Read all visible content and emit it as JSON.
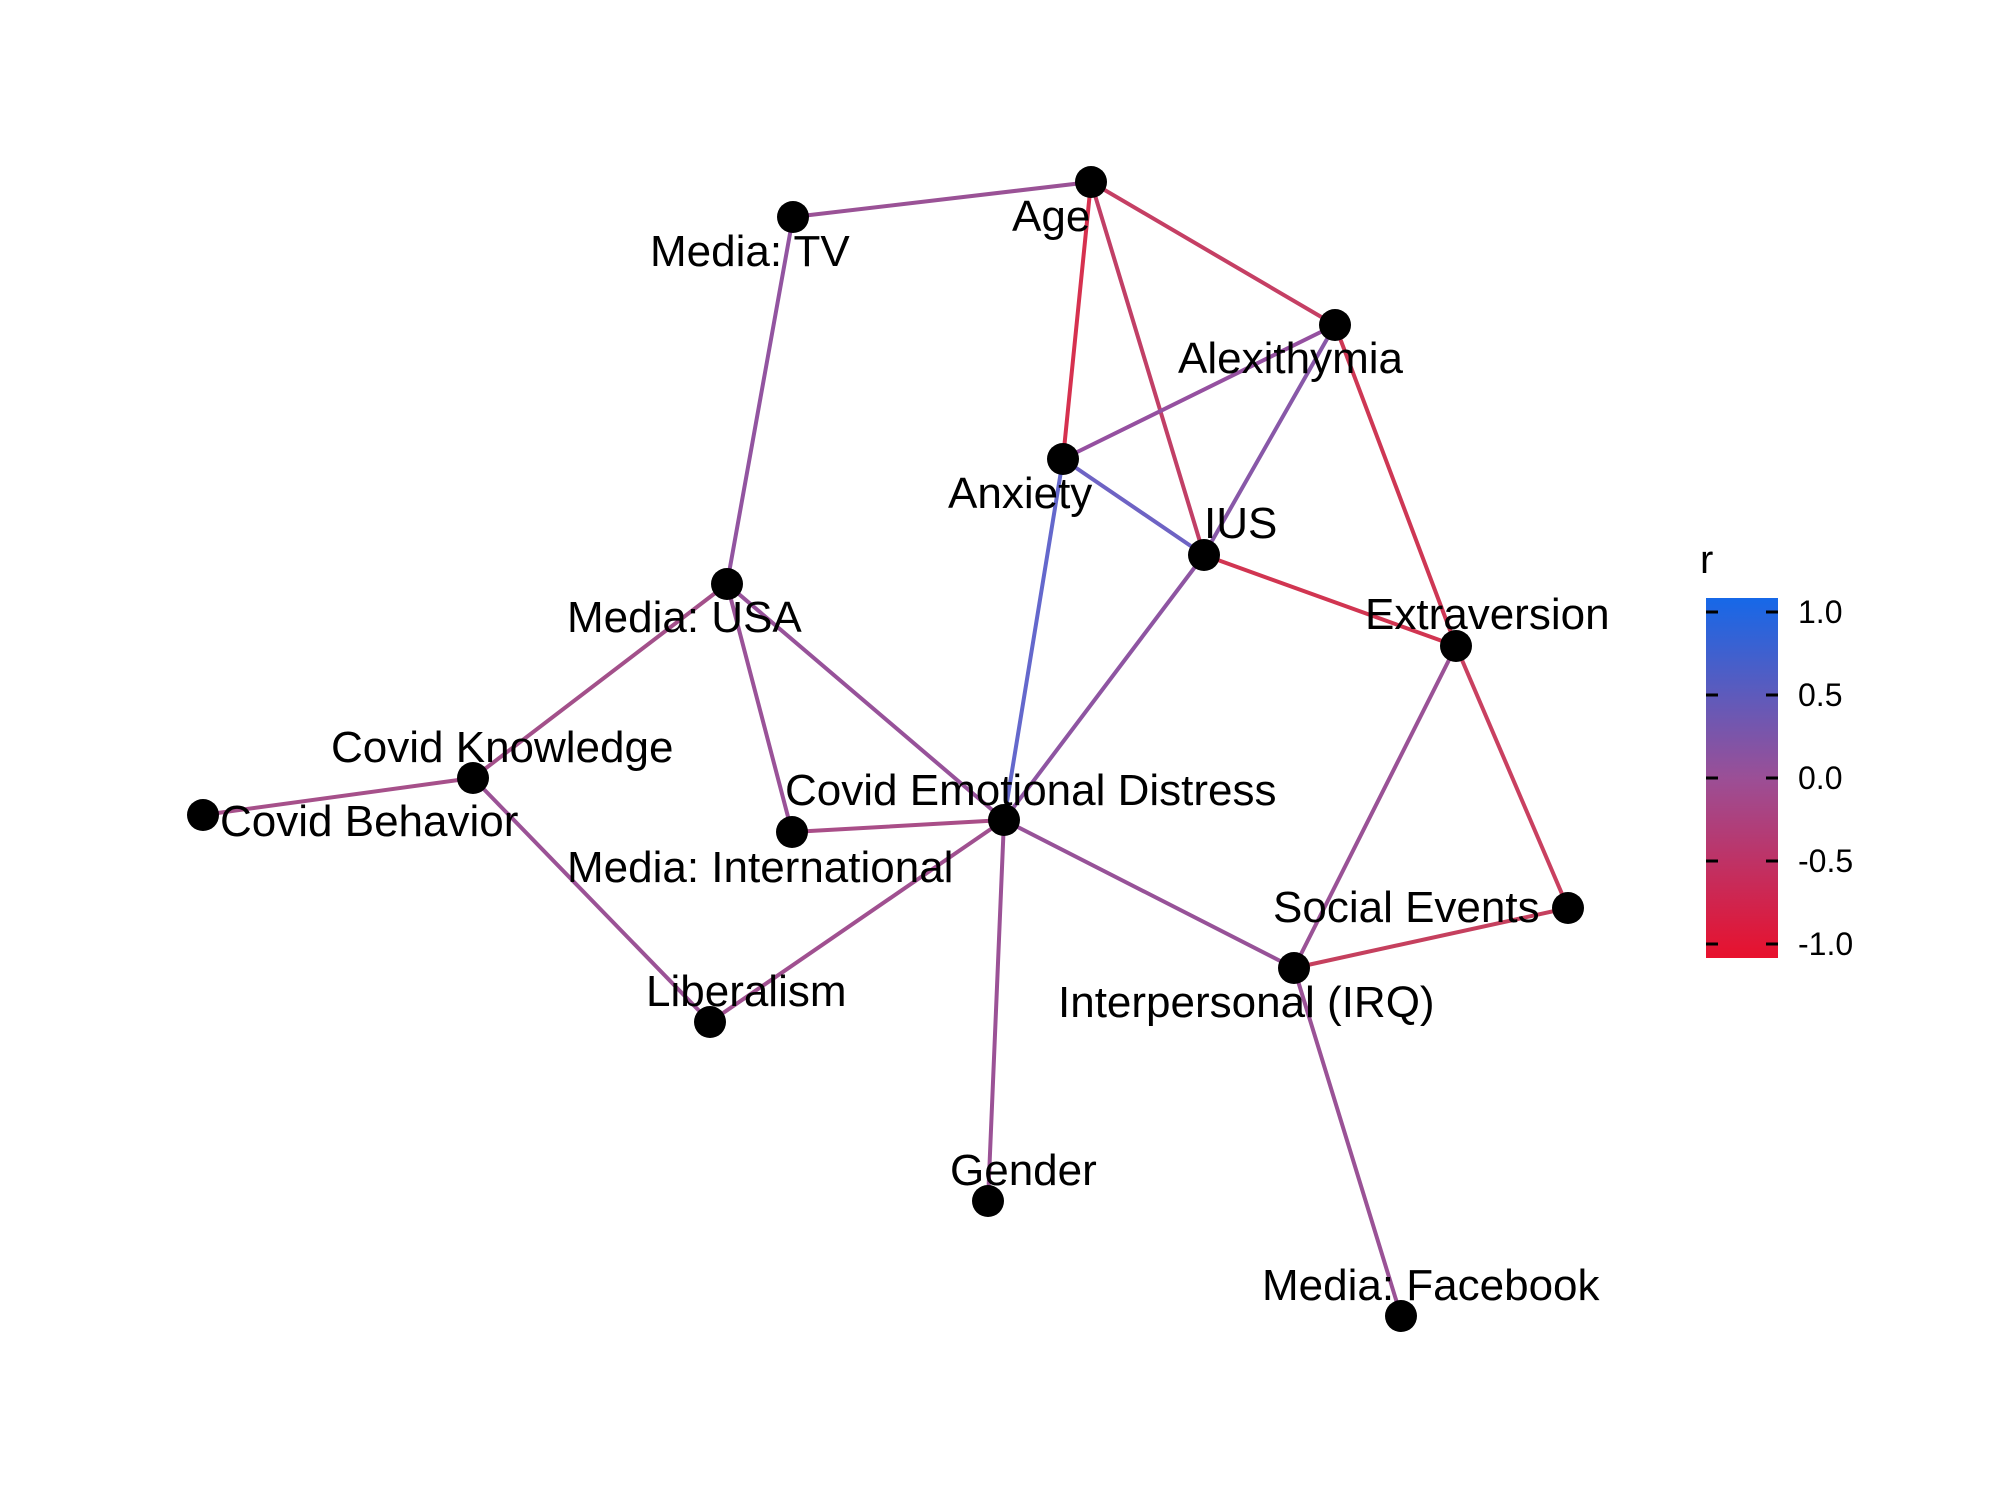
{
  "legend": {
    "title": "r",
    "ticks": [
      "1.0",
      "0.5",
      "0.0",
      "-0.5",
      "-1.0"
    ],
    "colors": {
      "high": "#1668E8",
      "mid": "#9B4F96",
      "low": "#E8112D"
    }
  },
  "nodes": [
    {
      "id": "age",
      "label": "Age"
    },
    {
      "id": "media_tv",
      "label": "Media: TV"
    },
    {
      "id": "alexithymia",
      "label": "Alexithymia"
    },
    {
      "id": "anxiety",
      "label": "Anxiety"
    },
    {
      "id": "ius",
      "label": "IUS"
    },
    {
      "id": "extraversion",
      "label": "Extraversion"
    },
    {
      "id": "media_usa",
      "label": "Media: USA"
    },
    {
      "id": "covid_knowledge",
      "label": "Covid Knowledge"
    },
    {
      "id": "covid_behavior",
      "label": "Covid Behavior"
    },
    {
      "id": "covid_emotional_distress",
      "label": "Covid Emotional Distress"
    },
    {
      "id": "media_international",
      "label": "Media: International"
    },
    {
      "id": "social_events",
      "label": "Social Events"
    },
    {
      "id": "interpersonal_irq",
      "label": "Interpersonal (IRQ)"
    },
    {
      "id": "liberalism",
      "label": "Liberalism"
    },
    {
      "id": "gender",
      "label": "Gender"
    },
    {
      "id": "media_facebook",
      "label": "Media: Facebook"
    }
  ],
  "edges": [
    {
      "source": "media_tv",
      "target": "age",
      "color": "#9A5296"
    },
    {
      "source": "age",
      "target": "anxiety",
      "color": "#D6314F"
    },
    {
      "source": "age",
      "target": "alexithymia",
      "color": "#C53F64"
    },
    {
      "source": "age",
      "target": "ius",
      "color": "#C13F66"
    },
    {
      "source": "alexithymia",
      "target": "anxiety",
      "color": "#9550A0"
    },
    {
      "source": "alexithymia",
      "target": "ius",
      "color": "#8858A8"
    },
    {
      "source": "alexithymia",
      "target": "extraversion",
      "color": "#CE3754"
    },
    {
      "source": "anxiety",
      "target": "ius",
      "color": "#6E63C4"
    },
    {
      "source": "anxiety",
      "target": "covid_emotional_distress",
      "color": "#6468CC"
    },
    {
      "source": "ius",
      "target": "extraversion",
      "color": "#D13551"
    },
    {
      "source": "ius",
      "target": "covid_emotional_distress",
      "color": "#8E55A2"
    },
    {
      "source": "media_tv",
      "target": "media_usa",
      "color": "#9254A0"
    },
    {
      "source": "media_usa",
      "target": "covid_knowledge",
      "color": "#A3508A"
    },
    {
      "source": "media_usa",
      "target": "media_international",
      "color": "#9A5298"
    },
    {
      "source": "media_usa",
      "target": "covid_emotional_distress",
      "color": "#97529A"
    },
    {
      "source": "covid_knowledge",
      "target": "covid_behavior",
      "color": "#A6508A"
    },
    {
      "source": "covid_knowledge",
      "target": "liberalism",
      "color": "#9B5296"
    },
    {
      "source": "media_international",
      "target": "covid_emotional_distress",
      "color": "#A94E88"
    },
    {
      "source": "covid_emotional_distress",
      "target": "liberalism",
      "color": "#A05090"
    },
    {
      "source": "covid_emotional_distress",
      "target": "gender",
      "color": "#9B5296"
    },
    {
      "source": "covid_emotional_distress",
      "target": "interpersonal_irq",
      "color": "#975298"
    },
    {
      "source": "extraversion",
      "target": "interpersonal_irq",
      "color": "#9A5296"
    },
    {
      "source": "extraversion",
      "target": "social_events",
      "color": "#C94060"
    },
    {
      "source": "interpersonal_irq",
      "target": "social_events",
      "color": "#C5405E"
    },
    {
      "source": "interpersonal_irq",
      "target": "media_facebook",
      "color": "#9A5296"
    }
  ]
}
